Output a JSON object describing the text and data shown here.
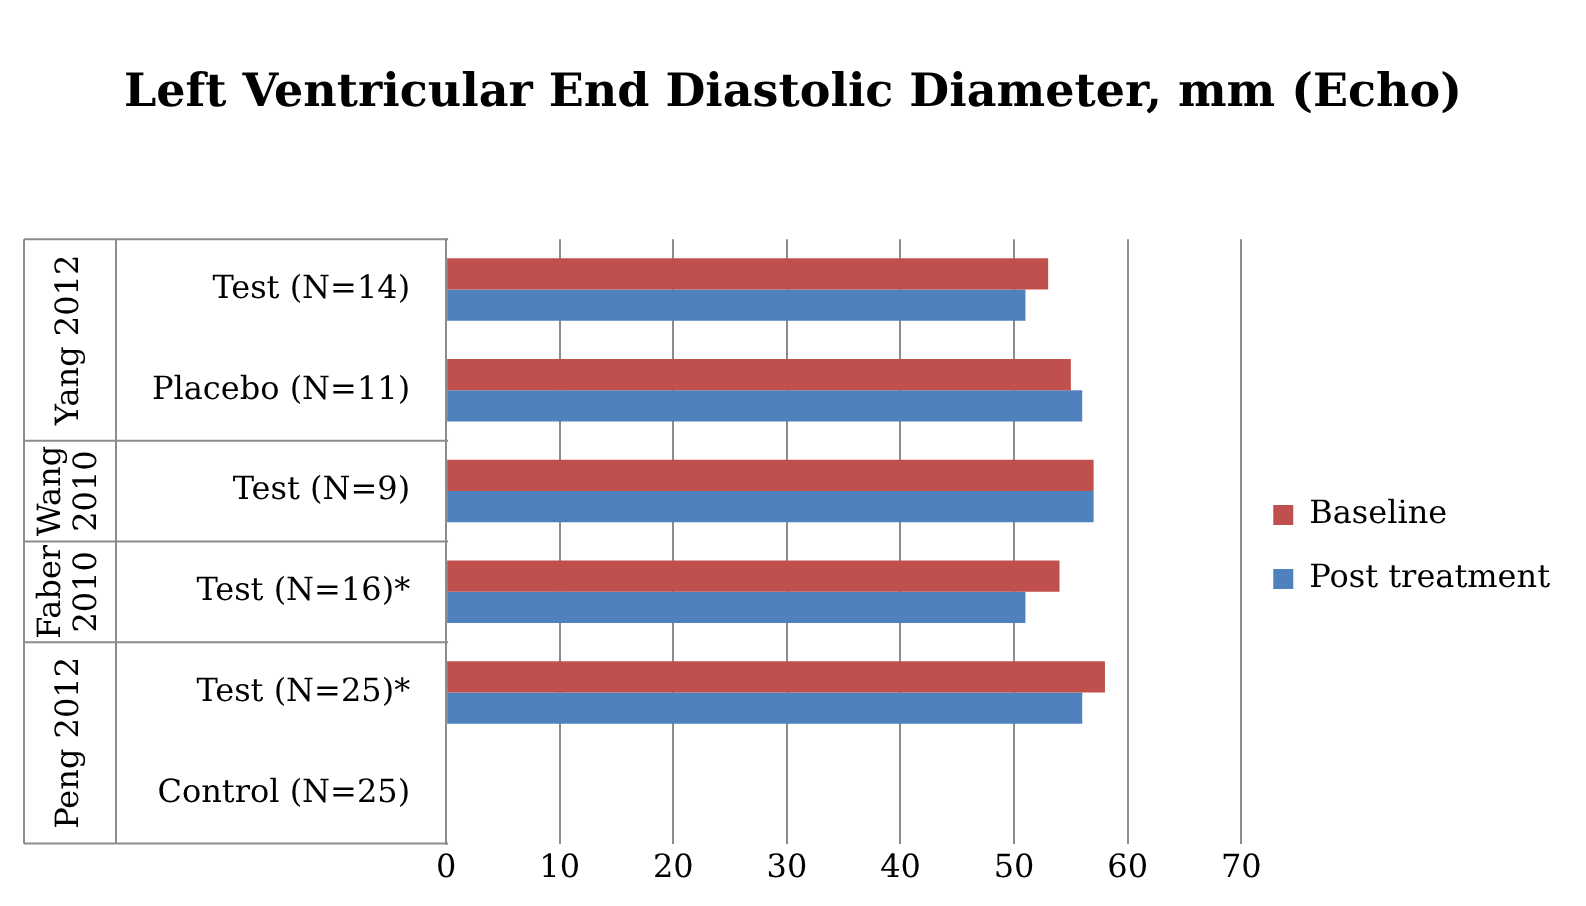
{
  "chart_data": {
    "type": "bar",
    "orientation": "horizontal",
    "title": "Left Ventricular End Diastolic Diameter, mm (Echo)",
    "categories": [
      "Test (N=14)",
      "Placebo (N=11)",
      "Test (N=9)",
      "Test (N=16)*",
      "Test (N=25)*",
      "Control (N=25)"
    ],
    "series": [
      {
        "name": "Baseline",
        "color": "#c0504d",
        "values": [
          53,
          55,
          57,
          54,
          58,
          null
        ]
      },
      {
        "name": "Post treatment",
        "color": "#4f81bd",
        "values": [
          51,
          56,
          57,
          51,
          56,
          null
        ]
      }
    ],
    "xlim": [
      0,
      70
    ],
    "xticks": [
      0,
      10,
      20,
      30,
      40,
      50,
      60,
      70
    ],
    "grid": "x",
    "legend": "right",
    "annotations": [
      "Yang 2012",
      "Wang 2010",
      "Faber 2010",
      "Peng 2012"
    ]
  }
}
